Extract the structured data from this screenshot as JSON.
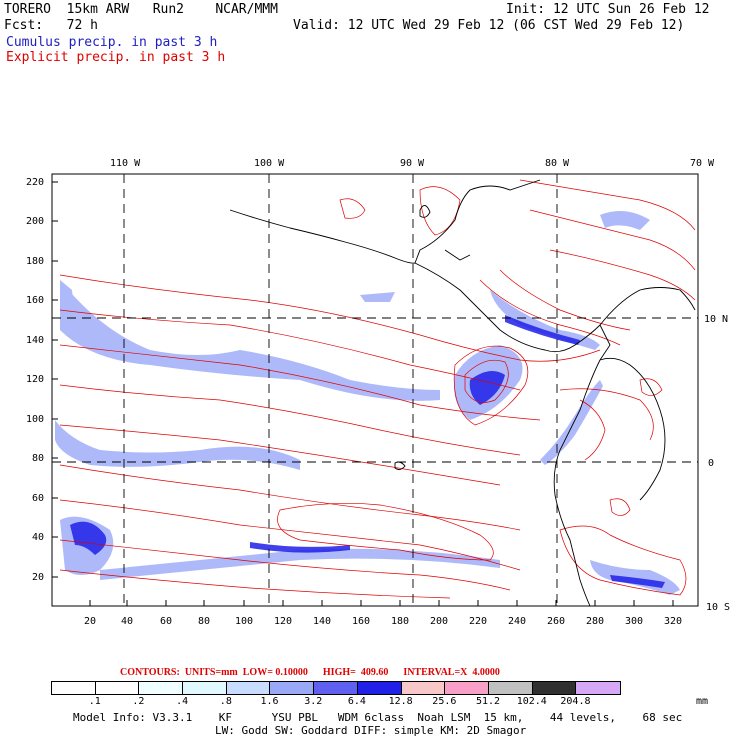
{
  "header": {
    "model": "TORERO  15km ARW   Run2    NCAR/MMM",
    "fcst": "Fcst:   72 h",
    "init": "Init: 12 UTC Sun 26 Feb 12",
    "valid": "Valid: 12 UTC Wed 29 Feb 12 (06 CST Wed 29 Feb 12)",
    "field1": "Cumulus precip. in past 3 h",
    "field2": "Explicit precip. in past 3 h"
  },
  "map": {
    "lon_labels": [
      "110 W",
      "100 W",
      "90 W",
      "80 W",
      "70 W"
    ],
    "lat_labels": [
      "10 N",
      "0",
      "10 S"
    ],
    "y_ticks": [
      "220",
      "200",
      "180",
      "160",
      "140",
      "120",
      "100",
      "80",
      "60",
      "40",
      "20"
    ],
    "x_ticks": [
      "20",
      "40",
      "60",
      "80",
      "100",
      "120",
      "140",
      "160",
      "180",
      "200",
      "220",
      "240",
      "260",
      "280",
      "300",
      "320"
    ]
  },
  "contours_line": "CONTOURS:  UNITS=mm  LOW= 0.10000      HIGH=  409.60      INTERVAL=X  4.0000",
  "legend": {
    "labels": [
      ".1",
      ".2",
      ".4",
      ".8",
      "1.6",
      "3.2",
      "6.4",
      "12.8",
      "25.6",
      "51.2",
      "102.4",
      "204.8"
    ],
    "unit": "mm",
    "colors": [
      "#ffffff",
      "#ffffff",
      "#f0ffff",
      "#e0f8ff",
      "#c8dcff",
      "#9aa8f8",
      "#6060f0",
      "#2020e8",
      "#f8c8c8",
      "#f8a0c8",
      "#c0c0c0",
      "#303030",
      "#d8a8f8"
    ]
  },
  "footer": {
    "line1": "Model Info: V3.3.1    KF      YSU PBL   WDM 6class  Noah LSM  15 km,    44 levels,    68 sec",
    "line2": "LW: Godd SW: Goddard DIFF: simple KM: 2D Smagor"
  }
}
